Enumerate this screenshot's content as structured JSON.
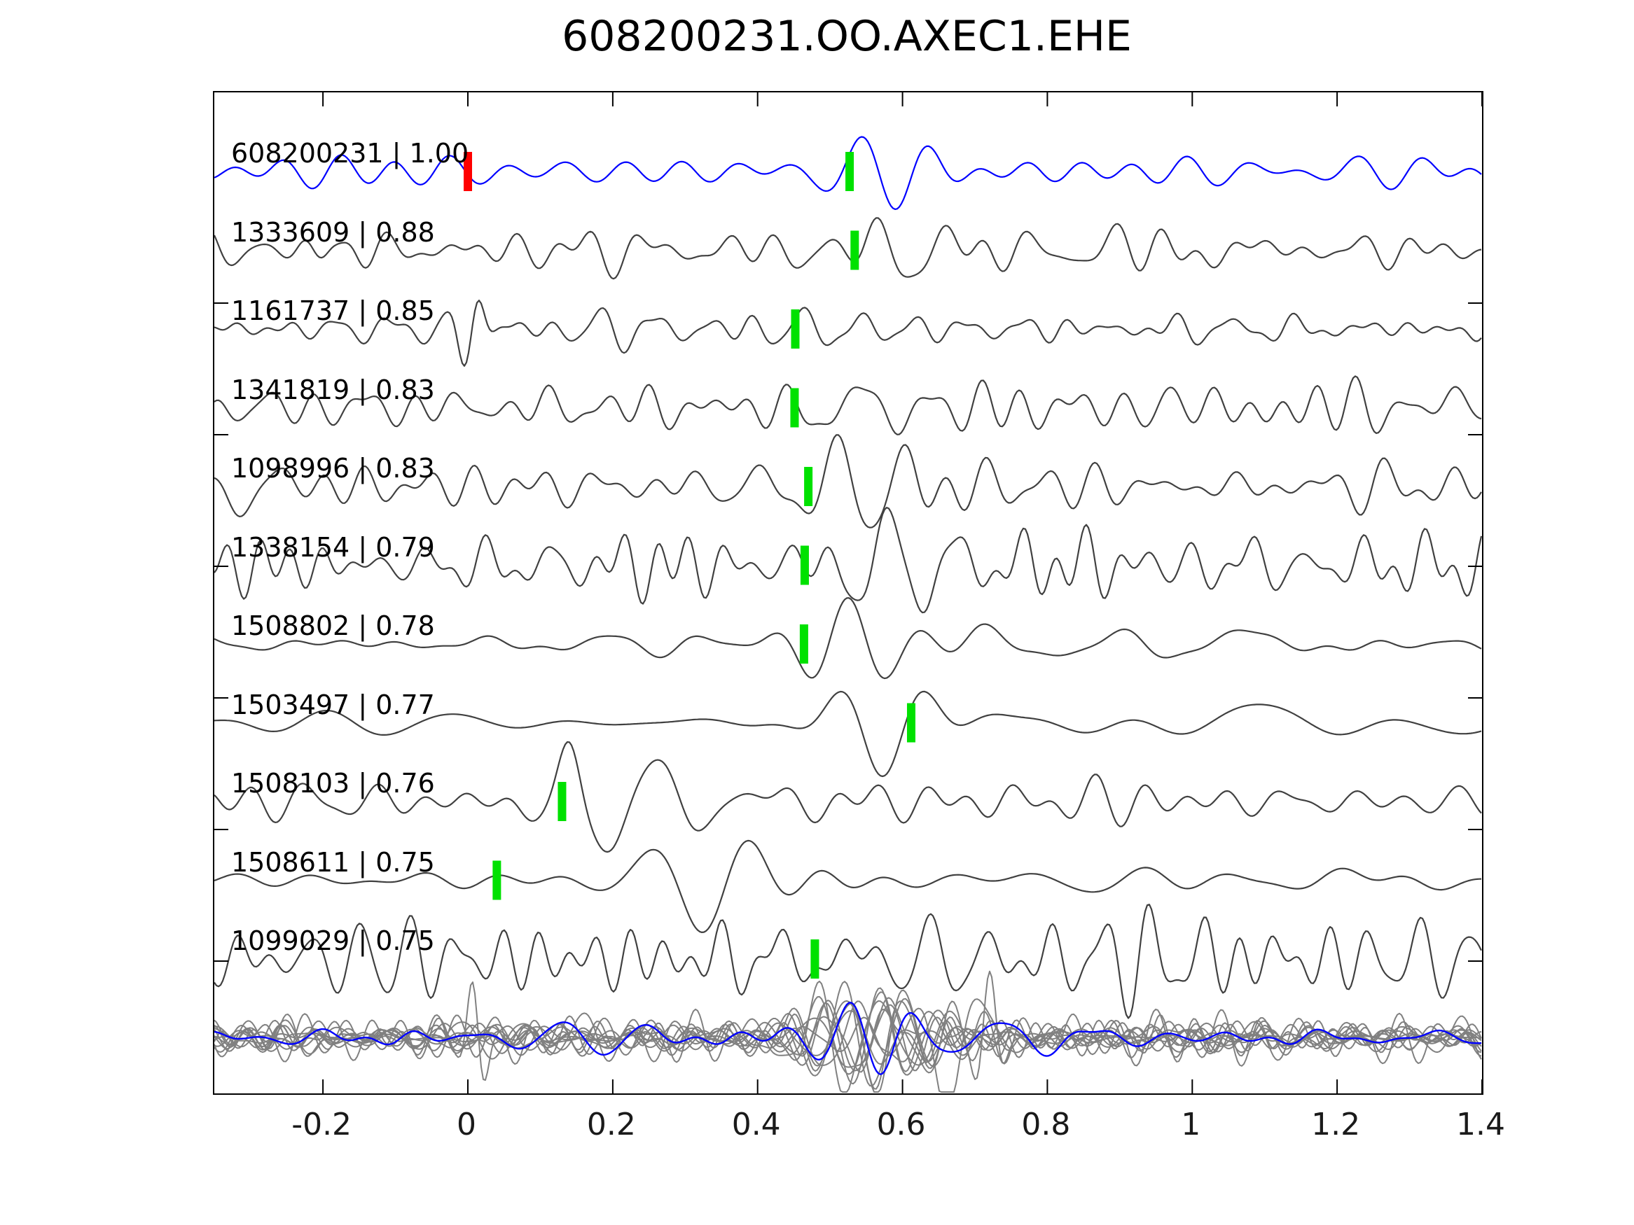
{
  "title": "608200231.OO.AXEC1.EHE",
  "chart_data": {
    "type": "line",
    "title": "608200231.OO.AXEC1.EHE",
    "xlabel": "",
    "ylabel": "",
    "grid": false,
    "legend_position": "none",
    "xlim": [
      -0.35,
      1.4
    ],
    "x_ticks": [
      {
        "value": -0.2,
        "label": "-0.2"
      },
      {
        "value": 0.0,
        "label": "0"
      },
      {
        "value": 0.2,
        "label": "0.2"
      },
      {
        "value": 0.4,
        "label": "0.4"
      },
      {
        "value": 0.6,
        "label": "0.6"
      },
      {
        "value": 0.8,
        "label": "0.8"
      },
      {
        "value": 1.0,
        "label": "1"
      },
      {
        "value": 1.2,
        "label": "1.2"
      },
      {
        "value": 1.4,
        "label": "1.4"
      }
    ],
    "colors": {
      "template_trace": "#0000ff",
      "detection_trace": "#404040",
      "stack_gray": "#808080",
      "stack_blue": "#0000ff",
      "pick_marker": "#00e100",
      "template_pick_marker": "#ff0000",
      "axis": "#000000",
      "text": "#000000"
    },
    "template_pick": {
      "trace_index": 0,
      "time": 0.0,
      "color": "#ff0000"
    },
    "traces": [
      {
        "id": "608200231",
        "correlation": "1.00",
        "label": "608200231 | 1.00",
        "color": "#0000ff",
        "pick_time": 0.527,
        "waveform": {
          "seed": 11,
          "noise_amp": 9,
          "noise_freq": [
            7,
            20
          ],
          "bursts": [
            [
              0.57,
              55,
              0.095,
              10.5,
              1.9
            ],
            [
              0.4,
              18,
              0.1,
              9,
              0.5
            ],
            [
              0.16,
              10,
              0.12,
              8,
              1.0
            ]
          ]
        }
      },
      {
        "id": "1333609",
        "correlation": "0.88",
        "label": "1333609 | 0.88",
        "color": "#404040",
        "pick_time": 0.534,
        "waveform": {
          "seed": 22,
          "noise_amp": 13,
          "noise_freq": [
            8,
            24
          ],
          "bursts": [
            [
              0.6,
              62,
              0.09,
              10,
              2.4
            ],
            [
              0.47,
              25,
              0.08,
              10,
              4.0
            ],
            [
              0.02,
              22,
              0.05,
              16,
              0.5
            ],
            [
              0.15,
              18,
              0.1,
              12,
              1.0
            ],
            [
              -0.19,
              15,
              0.03,
              20,
              0.0
            ],
            [
              0.95,
              14,
              0.15,
              6,
              1.0
            ]
          ]
        }
      },
      {
        "id": "1161737",
        "correlation": "0.85",
        "label": "1161737 | 0.85",
        "color": "#404040",
        "pick_time": 0.452,
        "waveform": {
          "seed": 33,
          "noise_amp": 8,
          "noise_freq": [
            10,
            26
          ],
          "bursts": [
            [
              0.005,
              70,
              0.025,
              20,
              4.8
            ],
            [
              0.07,
              18,
              0.05,
              14,
              1.0
            ],
            [
              0.46,
              14,
              0.06,
              13,
              0.2
            ],
            [
              1.33,
              10,
              0.05,
              10,
              2.0
            ]
          ]
        }
      },
      {
        "id": "1341819",
        "correlation": "0.83",
        "label": "1341819 | 0.83",
        "color": "#404040",
        "pick_time": 0.451,
        "waveform": {
          "seed": 44,
          "noise_amp": 15,
          "noise_freq": [
            8,
            22
          ],
          "bursts": [
            [
              0.545,
              58,
              0.085,
              10.5,
              0.2
            ],
            [
              0.46,
              -20,
              0.04,
              12,
              0.0
            ],
            [
              1.07,
              18,
              0.09,
              7,
              2.2
            ],
            [
              1.38,
              16,
              0.05,
              8,
              0.5
            ]
          ]
        }
      },
      {
        "id": "1098996",
        "correlation": "0.83",
        "label": "1098996 | 0.83",
        "color": "#404040",
        "pick_time": 0.47,
        "waveform": {
          "seed": 55,
          "noise_amp": 17,
          "noise_freq": [
            8,
            22
          ],
          "bursts": [
            [
              0.555,
              58,
              0.09,
              11,
              2.8
            ],
            [
              -0.3,
              28,
              0.07,
              8,
              3.6
            ],
            [
              0.47,
              -18,
              0.04,
              12,
              1.0
            ]
          ]
        }
      },
      {
        "id": "1338154",
        "correlation": "0.79",
        "label": "1338154 | 0.79",
        "color": "#404040",
        "pick_time": 0.465,
        "waveform": {
          "seed": 66,
          "noise_amp": 21,
          "noise_freq": [
            10,
            26
          ],
          "bursts": [
            [
              0.565,
              62,
              0.095,
              10,
              5.6
            ],
            [
              0.47,
              20,
              0.06,
              14,
              2.0
            ],
            [
              1.1,
              20,
              0.08,
              10,
              0.8
            ]
          ]
        }
      },
      {
        "id": "1508802",
        "correlation": "0.78",
        "label": "1508802 | 0.78",
        "color": "#404040",
        "pick_time": 0.464,
        "waveform": {
          "seed": 77,
          "noise_amp": 10,
          "noise_freq": [
            5,
            16
          ],
          "bursts": [
            [
              0.53,
              60,
              0.095,
              9.5,
              0.1
            ],
            [
              0.75,
              18,
              0.12,
              5,
              1.5
            ],
            [
              1.1,
              14,
              0.15,
              4,
              0.3
            ]
          ]
        }
      },
      {
        "id": "1503497",
        "correlation": "0.77",
        "label": "1503497 | 0.77",
        "color": "#404040",
        "pick_time": 0.612,
        "waveform": {
          "seed": 88,
          "noise_amp": 7,
          "noise_freq": [
            3,
            9
          ],
          "bursts": [
            [
              0.575,
              80,
              0.09,
              8,
              3.3
            ],
            [
              0.8,
              22,
              0.1,
              4.5,
              1.2
            ],
            [
              1.1,
              22,
              0.15,
              3.5,
              0.2
            ],
            [
              1.3,
              18,
              0.1,
              4,
              2.5
            ]
          ]
        }
      },
      {
        "id": "1508103",
        "correlation": "0.76",
        "label": "1508103 | 0.76",
        "color": "#404040",
        "pick_time": 0.13,
        "waveform": {
          "seed": 99,
          "noise_amp": 12,
          "noise_freq": [
            8,
            20
          ],
          "bursts": [
            [
              0.22,
              72,
              0.12,
              8,
              4.4
            ],
            [
              0.14,
              30,
              0.03,
              14,
              0.0
            ],
            [
              0.45,
              30,
              0.12,
              9,
              1.2
            ]
          ]
        }
      },
      {
        "id": "1508611",
        "correlation": "0.75",
        "label": "1508611 | 0.75",
        "color": "#404040",
        "pick_time": 0.04,
        "waveform": {
          "seed": 111,
          "noise_amp": 6,
          "noise_freq": [
            4,
            12
          ],
          "bursts": [
            [
              0.32,
              75,
              0.11,
              7,
              3.1
            ],
            [
              0.5,
              25,
              0.08,
              8,
              1.0
            ],
            [
              0.8,
              14,
              0.15,
              5,
              2.0
            ],
            [
              1.25,
              12,
              0.12,
              5,
              0.6
            ]
          ]
        }
      },
      {
        "id": "1099029",
        "correlation": "0.75",
        "label": "1099029 | 0.75",
        "color": "#404040",
        "pick_time": 0.479,
        "waveform": {
          "seed": 123,
          "noise_amp": 24,
          "noise_freq": [
            10,
            26
          ],
          "bursts": [
            [
              0.55,
              52,
              0.12,
              11,
              1.0
            ],
            [
              0.25,
              20,
              0.1,
              13,
              0.7
            ],
            [
              1.15,
              28,
              0.15,
              12,
              2.1
            ]
          ]
        }
      }
    ],
    "stack": {
      "gray_trace_count": 12,
      "gray_color": "#808080",
      "blue_color": "#0000ff",
      "gray_base": {
        "noise_amp": 9,
        "noise_freq": [
          8,
          24
        ],
        "burst": [
          0.555,
          45,
          0.09,
          10
        ]
      },
      "gray_specials": [
        {
          "index": 2,
          "burst": [
            0.012,
            85,
            0.018,
            24,
            1.2
          ]
        },
        {
          "index": 5,
          "burst": [
            0.665,
            -85,
            0.045,
            10,
            0.5
          ]
        },
        {
          "index": 7,
          "burst": [
            0.72,
            95,
            0.022,
            22,
            0.0
          ]
        },
        {
          "index": 9,
          "burst": [
            0.18,
            40,
            0.05,
            12,
            1.0
          ]
        }
      ],
      "blue": {
        "seed": 999,
        "noise_amp": 5,
        "noise_freq": [
          6,
          18
        ],
        "bursts": [
          [
            0.555,
            55,
            0.08,
            11,
            2.0
          ],
          [
            0.15,
            14,
            0.1,
            9,
            1.0
          ],
          [
            0.75,
            12,
            0.12,
            7,
            0.4
          ]
        ]
      }
    }
  }
}
